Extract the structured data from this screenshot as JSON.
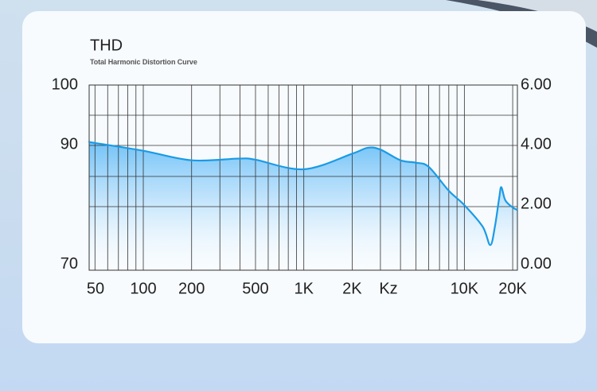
{
  "chart_data": {
    "type": "area",
    "title": "THD",
    "subtitle": "Total Harmonic Distortion Curve",
    "x_unit": "Kz",
    "x": [
      46,
      50,
      100,
      200,
      400,
      500,
      1000,
      2000,
      2500,
      3000,
      4000,
      5000,
      6000,
      8000,
      10000,
      13000,
      14500,
      15500,
      16500,
      17000,
      18000,
      20000,
      21400
    ],
    "values": [
      90.5,
      90.3,
      89,
      87.4,
      87.7,
      87.5,
      85.9,
      88.5,
      89.5,
      89.2,
      87.4,
      87,
      86.3,
      82.3,
      79.9,
      76.3,
      73.2,
      76.3,
      81.2,
      82.9,
      80.7,
      79.5,
      79.1
    ],
    "color": "#1a9be6",
    "log_x": true,
    "xlim": [
      46,
      21400
    ],
    "xticks": [
      50,
      100,
      200,
      500,
      {
        "value": 1000,
        "label": "1K"
      },
      {
        "value": 2000,
        "label": "2K"
      },
      {
        "value": 10000,
        "label": "10K"
      },
      {
        "value": 20000,
        "label": "20K"
      }
    ],
    "ylim": [
      69,
      100
    ],
    "yticks": [
      70,
      90,
      100
    ],
    "y2lim": [
      -0.2,
      6
    ],
    "y2ticks": [
      {
        "value": 0,
        "label": "0.00"
      },
      {
        "value": 2,
        "label": "2.00"
      },
      {
        "value": 4,
        "label": "4.00"
      },
      {
        "value": 6,
        "label": "6.00"
      }
    ],
    "grid": true
  }
}
